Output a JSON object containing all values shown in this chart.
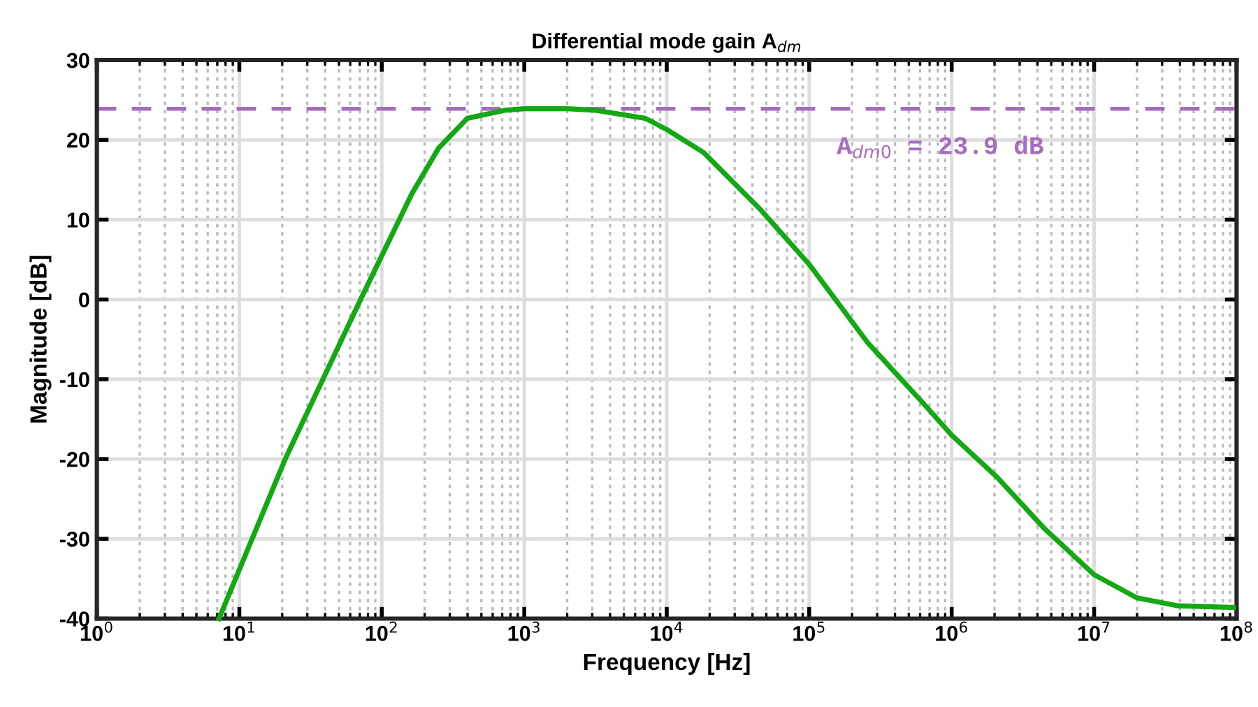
{
  "chart_data": {
    "type": "line",
    "title": "Differential mode gain A$_{dm}$",
    "xlabel": "Frequency [Hz]",
    "ylabel": "Magnitude [dB]",
    "log": "x",
    "xlim": [
      1,
      100000000
    ],
    "ylim": [
      -40,
      30
    ],
    "xticks": [
      {
        "value": 1,
        "label": "10$^{0}$"
      },
      {
        "value": 10,
        "label": "10$^{1}$"
      },
      {
        "value": 100,
        "label": "10$^{2}$"
      },
      {
        "value": 1000,
        "label": "10$^{3}$"
      },
      {
        "value": 10000,
        "label": "10$^{4}$"
      },
      {
        "value": 100000,
        "label": "10$^{5}$"
      },
      {
        "value": 1000000,
        "label": "10$^{6}$"
      },
      {
        "value": 10000000,
        "label": "10$^{7}$"
      },
      {
        "value": 100000000,
        "label": "10$^{8}$"
      }
    ],
    "yticks": [
      -40,
      -30,
      -20,
      -10,
      0,
      10,
      20,
      30
    ],
    "grid": true,
    "marker": "none",
    "line_style": "solid",
    "series": [
      {
        "color": "#14a814",
        "x": [
          7.2,
          21,
          71,
          162,
          251,
          398,
          724,
          1000,
          2000,
          3200,
          7080,
          10000,
          18200,
          44700,
          100000,
          257000,
          631000,
          1000000,
          2090000,
          4470000,
          10000000,
          20000000,
          38900000,
          95000000
        ],
        "values": [
          -40,
          -20,
          0,
          13.2,
          19,
          22.7,
          23.7,
          23.9,
          23.9,
          23.7,
          22.7,
          21.3,
          18.4,
          11.4,
          4.4,
          -5.4,
          -13,
          -17,
          -22.3,
          -28.7,
          -34.5,
          -37.4,
          -38.4,
          -38.6
        ]
      }
    ],
    "ref_lines": [
      {
        "axis": "y",
        "value": 23.9,
        "label": "A$_{dm0}$ = 23.9 dB",
        "color": "#a66cbd",
        "line_style": "dashed"
      }
    ]
  }
}
